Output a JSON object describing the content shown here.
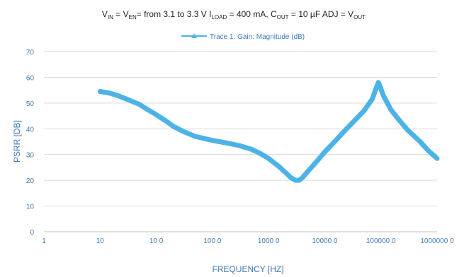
{
  "chart_data": {
    "type": "line",
    "title": {
      "p1": "V",
      "p1_sub": "IN",
      "p2": " = V",
      "p2_sub": "EN",
      "p3": "= from 3.1 to 3.3 V  I",
      "p3_sub": "LOAD",
      "p4": " = 400 mA, C",
      "p4_sub": "OUT",
      "p5": " = 10 µF ADJ = V",
      "p5_sub": "OUT"
    },
    "xlabel": "FREQUENCY [HZ]",
    "ylabel": "PSRR [DB]",
    "x_scale": "log",
    "xlim": [
      1,
      10000000
    ],
    "ylim": [
      0,
      70
    ],
    "y_ticks": [
      0,
      10,
      20,
      30,
      40,
      50,
      60,
      70
    ],
    "x_ticks": [
      {
        "value": 1,
        "label": "1"
      },
      {
        "value": 10,
        "label": "10"
      },
      {
        "value": 100,
        "label": "10 0"
      },
      {
        "value": 1000,
        "label": "100 0"
      },
      {
        "value": 10000,
        "label": "1000 0"
      },
      {
        "value": 100000,
        "label": "10000 0"
      },
      {
        "value": 1000000,
        "label": "100000 0"
      },
      {
        "value": 10000000,
        "label": "1000000 0"
      }
    ],
    "grid": "horizontal",
    "legend_position": "top-center",
    "series": [
      {
        "name": "Trace 1: Gain: Magnitude (dB)",
        "color": "#4db3e6",
        "points": [
          [
            10,
            54.5
          ],
          [
            14,
            54
          ],
          [
            20,
            53
          ],
          [
            30,
            51.5
          ],
          [
            50,
            49.5
          ],
          [
            70,
            47.5
          ],
          [
            100,
            45.5
          ],
          [
            150,
            43
          ],
          [
            200,
            41
          ],
          [
            300,
            39
          ],
          [
            500,
            37
          ],
          [
            1000,
            35.5
          ],
          [
            2000,
            34.3
          ],
          [
            3000,
            33.5
          ],
          [
            5000,
            32
          ],
          [
            7000,
            30.5
          ],
          [
            10000,
            28.5
          ],
          [
            15000,
            25.5
          ],
          [
            20000,
            23
          ],
          [
            25000,
            21
          ],
          [
            30000,
            20
          ],
          [
            35000,
            20
          ],
          [
            40000,
            21
          ],
          [
            50000,
            23.5
          ],
          [
            70000,
            27
          ],
          [
            100000,
            31
          ],
          [
            150000,
            35
          ],
          [
            200000,
            38
          ],
          [
            300000,
            42
          ],
          [
            500000,
            47
          ],
          [
            700000,
            51.5
          ],
          [
            800000,
            55
          ],
          [
            900000,
            58
          ],
          [
            950000,
            57
          ],
          [
            1100000,
            53
          ],
          [
            1500000,
            47.5
          ],
          [
            2000000,
            44
          ],
          [
            3000000,
            39.5
          ],
          [
            5000000,
            35
          ],
          [
            7000000,
            31.5
          ],
          [
            10000000,
            28.5
          ]
        ]
      }
    ]
  }
}
